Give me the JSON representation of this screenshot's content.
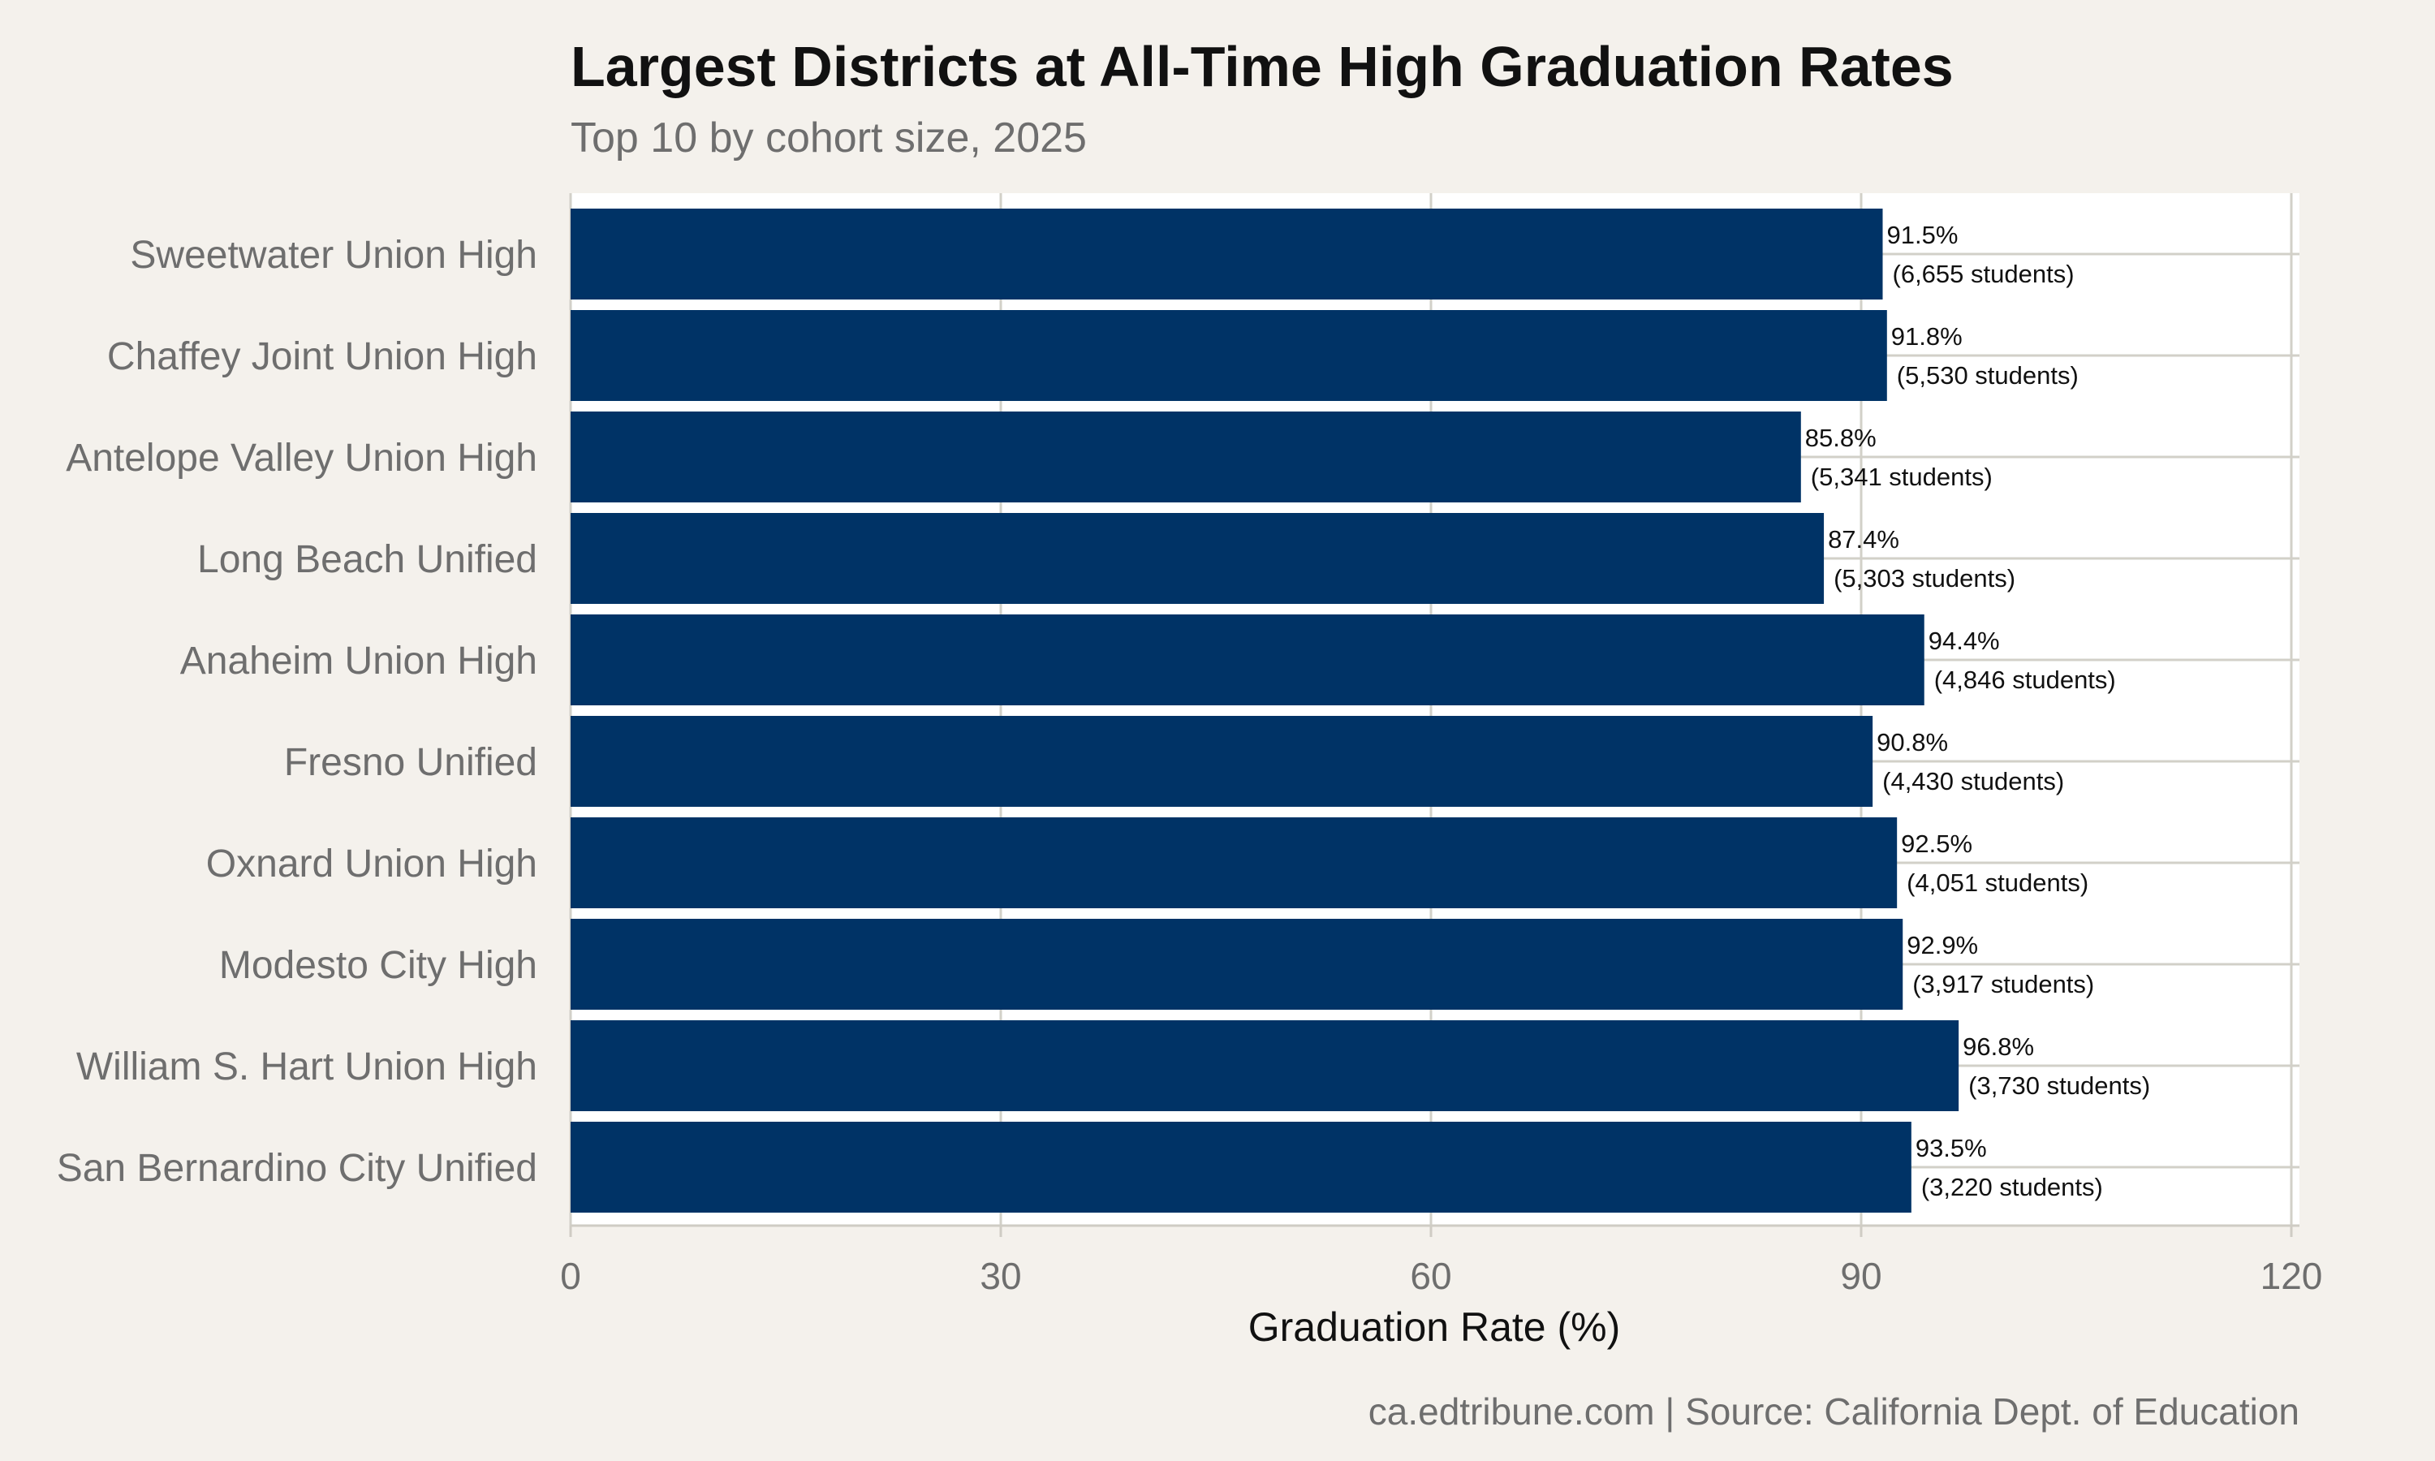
{
  "chart_data": {
    "type": "bar",
    "orientation": "horizontal",
    "title": "Largest Districts at All-Time High Graduation Rates",
    "subtitle": "Top 10 by cohort size, 2025",
    "xlabel": "Graduation Rate (%)",
    "ylabel": "",
    "xlim": [
      0,
      120
    ],
    "xticks": [
      0,
      30,
      60,
      90,
      120
    ],
    "grid": true,
    "bar_color": "#003366",
    "categories": [
      "Sweetwater Union High",
      "Chaffey Joint Union High",
      "Antelope Valley Union High",
      "Long Beach Unified",
      "Anaheim Union High",
      "Fresno Unified",
      "Oxnard Union High",
      "Modesto City High",
      "William S. Hart Union High",
      "San Bernardino City Unified"
    ],
    "values": [
      91.5,
      91.8,
      85.8,
      87.4,
      94.4,
      90.8,
      92.5,
      92.9,
      96.8,
      93.5
    ],
    "value_labels": [
      "91.5%",
      "91.8%",
      "85.8%",
      "87.4%",
      "94.4%",
      "90.8%",
      "92.5%",
      "92.9%",
      "96.8%",
      "93.5%"
    ],
    "student_labels": [
      "(6,655 students)",
      "(5,530 students)",
      "(5,341 students)",
      "(5,303 students)",
      "(4,846 students)",
      "(4,430 students)",
      "(4,051 students)",
      "(3,917 students)",
      "(3,730 students)",
      "(3,220 students)"
    ],
    "caption": "ca.edtribune.com | Source: California Dept. of Education"
  }
}
